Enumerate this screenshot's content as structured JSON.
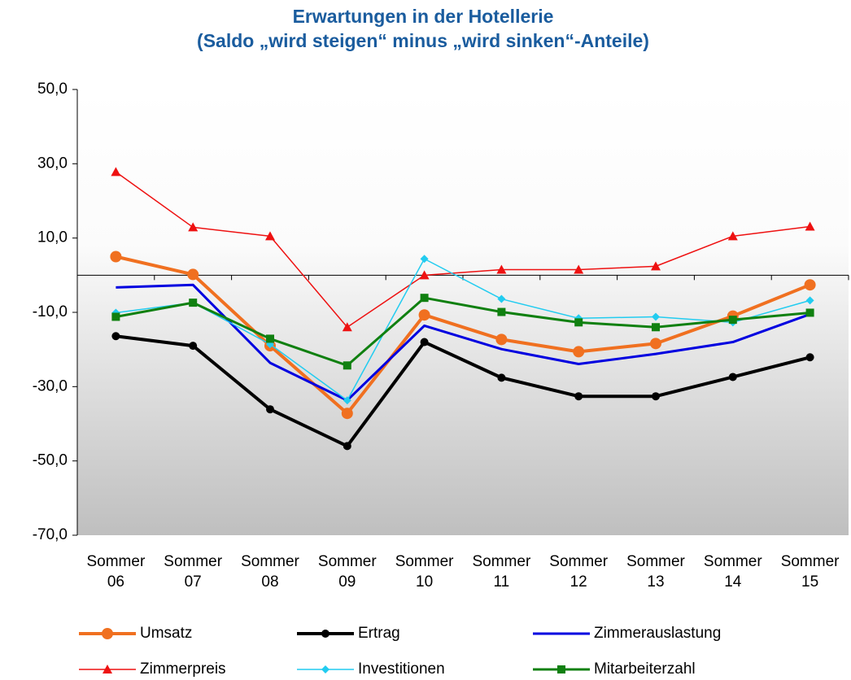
{
  "chart_data": {
    "type": "line",
    "title": "Erwartungen in der Hotellerie",
    "subtitle": "(Saldo „wird steigen“ minus „wird sinken“-Anteile)",
    "categories": [
      "Sommer 06",
      "Sommer 07",
      "Sommer 08",
      "Sommer 09",
      "Sommer 10",
      "Sommer 11",
      "Sommer 12",
      "Sommer 13",
      "Sommer 14",
      "Sommer 15"
    ],
    "ylim": [
      -70,
      50
    ],
    "yticks": [
      {
        "value": -70,
        "label": "-70,0"
      },
      {
        "value": -50,
        "label": "-50,0"
      },
      {
        "value": -30,
        "label": "-30,0"
      },
      {
        "value": -10,
        "label": "-10,0"
      },
      {
        "value": 10,
        "label": "10,0"
      },
      {
        "value": 30,
        "label": "30,0"
      },
      {
        "value": 50,
        "label": "50,0"
      }
    ],
    "series": [
      {
        "name": "Umsatz",
        "color": "#f07020",
        "marker": "circle",
        "values": [
          5.0,
          0.2,
          -19,
          -37.2,
          -10.7,
          -17.3,
          -20.6,
          -18.4,
          -11,
          -2.6
        ]
      },
      {
        "name": "Ertrag",
        "color": "#000000",
        "marker": "circle",
        "values": [
          -16.4,
          -19,
          -36.1,
          -46,
          -18,
          -27.6,
          -32.6,
          -32.6,
          -27.4,
          -22.1
        ]
      },
      {
        "name": "Zimmerauslastung",
        "color": "#0000e0",
        "marker": "none",
        "values": [
          -3.3,
          -2.6,
          -23.6,
          -33.7,
          -13.6,
          -19.9,
          -23.9,
          -21.2,
          -18,
          -10.5
        ]
      },
      {
        "name": "Zimmerpreis",
        "color": "#ee1111",
        "marker": "triangle",
        "values": [
          27.8,
          12.9,
          10.5,
          -14,
          0,
          1.5,
          1.5,
          2.4,
          10.5,
          13.1
        ]
      },
      {
        "name": "Investitionen",
        "color": "#22ccf0",
        "marker": "diamond",
        "values": [
          -10.1,
          -7.4,
          -18.6,
          -33.7,
          4.4,
          -6.4,
          -11.6,
          -11.2,
          -12.7,
          -6.8
        ]
      },
      {
        "name": "Mitarbeiterzahl",
        "color": "#108010",
        "marker": "square",
        "values": [
          -11.2,
          -7.4,
          -17.1,
          -24.3,
          -6.1,
          -9.9,
          -12.7,
          -14,
          -12,
          -10.1
        ]
      }
    ]
  }
}
